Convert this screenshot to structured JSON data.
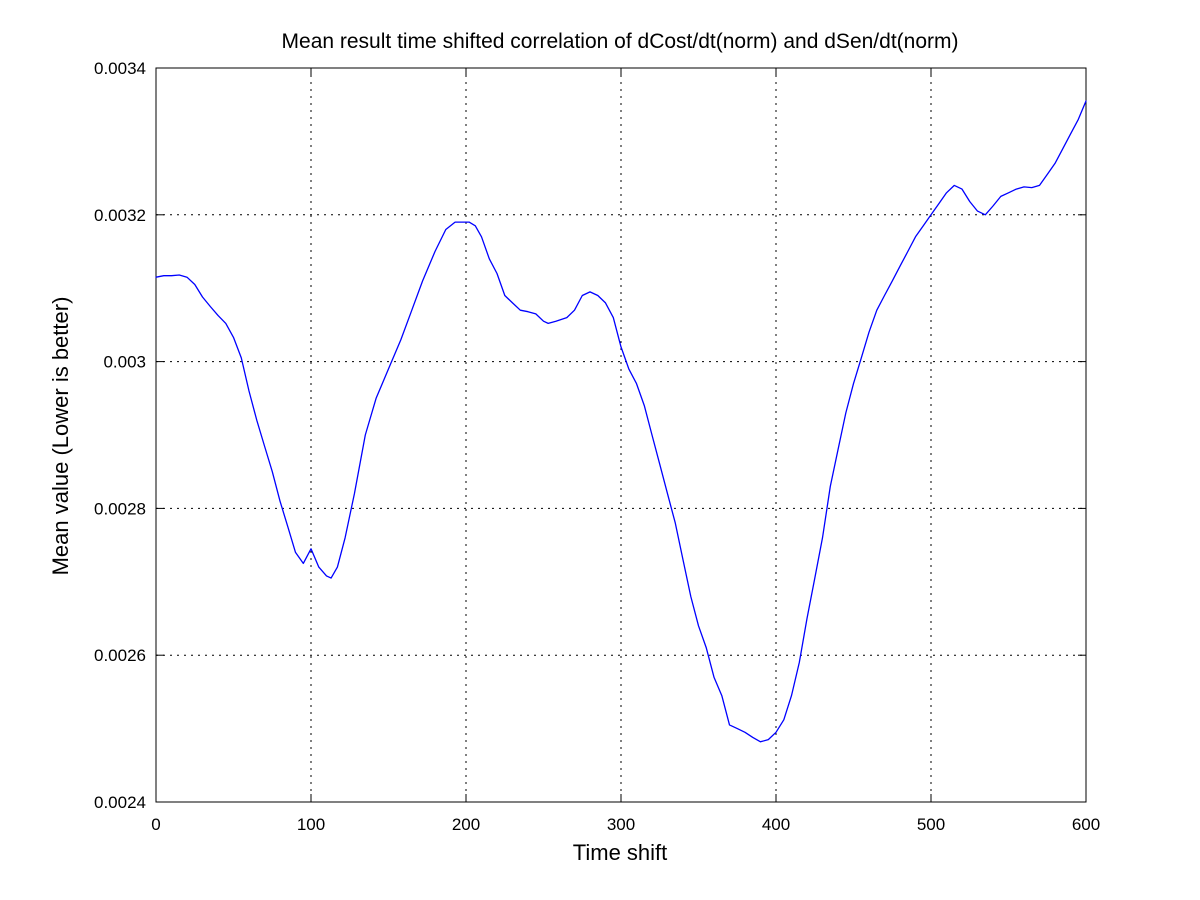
{
  "chart_data": {
    "type": "line",
    "title": "Mean result time shifted correlation of dCost/dt(norm) and dSen/dt(norm)",
    "xlabel": "Time shift",
    "ylabel": "Mean value (Lower is better)",
    "xlim": [
      0,
      600
    ],
    "ylim": [
      0.0024,
      0.0034
    ],
    "grid": true,
    "x_ticks": [
      0,
      100,
      200,
      300,
      400,
      500,
      600
    ],
    "x_tick_labels": [
      "0",
      "100",
      "200",
      "300",
      "400",
      "500",
      "600"
    ],
    "y_ticks": [
      0.0024,
      0.0026,
      0.0028,
      0.003,
      0.0032,
      0.0034
    ],
    "y_tick_labels": [
      "0.0024",
      "0.0026",
      "0.0028",
      "0.003",
      "0.0032",
      "0.0034"
    ],
    "series": [
      {
        "color": "#0000ff",
        "x": [
          0,
          5,
          10,
          15,
          20,
          25,
          30,
          35,
          40,
          45,
          50,
          55,
          60,
          65,
          70,
          75,
          80,
          85,
          90,
          95,
          100,
          105,
          110,
          113,
          117,
          122,
          128,
          135,
          142,
          150,
          158,
          165,
          172,
          180,
          187,
          193,
          198,
          202,
          206,
          210,
          215,
          220,
          225,
          230,
          235,
          240,
          245,
          250,
          253,
          258,
          265,
          270,
          275,
          280,
          285,
          290,
          295,
          300,
          305,
          310,
          315,
          320,
          325,
          330,
          335,
          340,
          345,
          350,
          355,
          360,
          365,
          370,
          375,
          380,
          385,
          390,
          395,
          400,
          405,
          410,
          415,
          420,
          425,
          430,
          435,
          440,
          445,
          450,
          455,
          460,
          465,
          470,
          475,
          480,
          485,
          490,
          495,
          500,
          505,
          510,
          515,
          520,
          525,
          530,
          535,
          540,
          545,
          550,
          555,
          560,
          565,
          570,
          575,
          580,
          585,
          590,
          595,
          600
        ],
        "y": [
          0.003115,
          0.003117,
          0.003117,
          0.003118,
          0.003115,
          0.003105,
          0.003088,
          0.003075,
          0.003063,
          0.003052,
          0.003033,
          0.003005,
          0.00296,
          0.00292,
          0.002885,
          0.00285,
          0.00281,
          0.002775,
          0.00274,
          0.002725,
          0.002745,
          0.00272,
          0.002708,
          0.002705,
          0.00272,
          0.00276,
          0.00282,
          0.0029,
          0.00295,
          0.00299,
          0.00303,
          0.00307,
          0.00311,
          0.00315,
          0.00318,
          0.00319,
          0.00319,
          0.00319,
          0.003185,
          0.00317,
          0.00314,
          0.00312,
          0.00309,
          0.00308,
          0.00307,
          0.003068,
          0.003065,
          0.003055,
          0.003052,
          0.003055,
          0.00306,
          0.00307,
          0.00309,
          0.003095,
          0.00309,
          0.00308,
          0.00306,
          0.00302,
          0.00299,
          0.00297,
          0.00294,
          0.0029,
          0.00286,
          0.00282,
          0.00278,
          0.00273,
          0.00268,
          0.00264,
          0.00261,
          0.00257,
          0.002545,
          0.002505,
          0.0025,
          0.002495,
          0.002488,
          0.002482,
          0.002485,
          0.002495,
          0.002512,
          0.002545,
          0.00259,
          0.00265,
          0.002705,
          0.00276,
          0.00283,
          0.00288,
          0.00293,
          0.00297,
          0.003005,
          0.00304,
          0.00307,
          0.00309,
          0.00311,
          0.00313,
          0.00315,
          0.00317,
          0.003185,
          0.0032,
          0.003215,
          0.00323,
          0.00324,
          0.003235,
          0.003218,
          0.003205,
          0.0032,
          0.003212,
          0.003225,
          0.00323,
          0.003235,
          0.003238,
          0.003237,
          0.00324,
          0.003255,
          0.00327,
          0.00329,
          0.00331,
          0.00333,
          0.003355
        ]
      }
    ]
  }
}
